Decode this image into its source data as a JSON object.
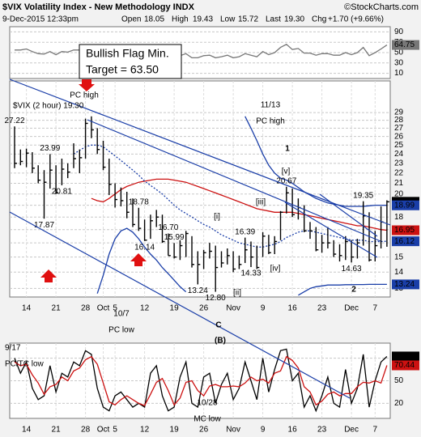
{
  "header": {
    "title": "$VIX Volatility Index - New Methodology INDX",
    "credit": "©StockCharts.com",
    "date": "9-Dec-2015 12:33pm",
    "quote": [
      [
        "Open",
        "18.05"
      ],
      [
        "High",
        "19.43"
      ],
      [
        "Low",
        "15.72"
      ],
      [
        "Last",
        "19.30"
      ],
      [
        "Chg",
        "+1.70 (+9.66%)"
      ]
    ]
  },
  "chart_data": [
    {
      "type": "line",
      "ylim": [
        0,
        100
      ],
      "yticks": [
        10,
        30,
        50,
        70,
        90
      ],
      "grid": true,
      "note": [
        "Bullish Flag Min.",
        "Target = 63.50"
      ],
      "series": [
        {
          "color": "#777777",
          "values": [
            55,
            55,
            57,
            52,
            48,
            47,
            52,
            46,
            52,
            51,
            55,
            55,
            62,
            58,
            52,
            47,
            43,
            45,
            45,
            43,
            41,
            40,
            39,
            45,
            47,
            42,
            40,
            39,
            44,
            48,
            40,
            40,
            44,
            45,
            40,
            42,
            45,
            40,
            42,
            48,
            45,
            42,
            52,
            46,
            50,
            60,
            66,
            56,
            58,
            49,
            49,
            45,
            48,
            48,
            45,
            45,
            50,
            46,
            50,
            60,
            44,
            50,
            57,
            64.75
          ]
        }
      ],
      "right_labels": [
        64.75
      ],
      "right_label_colors": [
        "#777777"
      ]
    },
    {
      "type": "ohlc",
      "log_scale": true,
      "ylim": [
        12.5,
        33.5
      ],
      "yticks": [
        13,
        14,
        15,
        16,
        17,
        18,
        19,
        20,
        21,
        22,
        23,
        24,
        25,
        26,
        27,
        28,
        29
      ],
      "grid": true,
      "legend": "$VIX (2 hour) 19.30",
      "color": "#000000",
      "categories": [
        null,
        null,
        "14",
        null,
        null,
        null,
        null,
        "21",
        null,
        null,
        null,
        null,
        "28",
        null,
        null,
        "Oct",
        null,
        "5",
        null,
        null,
        null,
        null,
        "12",
        null,
        null,
        null,
        null,
        "19",
        null,
        null,
        null,
        null,
        "26",
        null,
        null,
        null,
        null,
        "Nov",
        null,
        null,
        null,
        null,
        "9",
        null,
        null,
        null,
        null,
        "16",
        null,
        null,
        null,
        null,
        "23",
        null,
        null,
        null,
        null,
        "Dec",
        null,
        null,
        null,
        "7",
        null,
        null
      ],
      "high": [
        27.22,
        24.5,
        24.6,
        24.2,
        22.8,
        22.3,
        23.99,
        22.8,
        23.5,
        23.0,
        25.2,
        24.5,
        28.2,
        28.5,
        27.0,
        25.5,
        23.5,
        21.0,
        20.6,
        20.2,
        19.6,
        18.78,
        17.8,
        18.2,
        18.6,
        18.2,
        16.7,
        15.99,
        16.2,
        16.9,
        16.5,
        15.4,
        15.5,
        16.0,
        15.8,
        15.4,
        15.6,
        15.4,
        15.1,
        16.39,
        16.1,
        15.8,
        16.8,
        16.6,
        16.5,
        18.5,
        20.67,
        20.5,
        19.6,
        19.0,
        17.6,
        17.2,
        16.6,
        17.2,
        16.2,
        15.9,
        16.5,
        16.2,
        16.3,
        19.35,
        18.4,
        16.9,
        18.9,
        19.43
      ],
      "low": [
        22.5,
        22.8,
        22.6,
        22.0,
        21.0,
        17.87,
        20.5,
        20.0,
        20.81,
        21.5,
        22.5,
        22.0,
        23.5,
        25.8,
        24.0,
        22.3,
        19.9,
        18.8,
        18.9,
        17.9,
        17.2,
        16.9,
        16.14,
        16.3,
        17.2,
        16.0,
        15.1,
        14.9,
        14.8,
        15.0,
        14.3,
        13.24,
        14.2,
        14.9,
        12.8,
        14.3,
        14.5,
        14.0,
        14.2,
        14.6,
        14.33,
        14.2,
        15.0,
        15.2,
        15.2,
        16.2,
        18.3,
        18.0,
        17.8,
        16.8,
        16.3,
        15.4,
        15.3,
        15.6,
        15.0,
        14.7,
        14.8,
        14.63,
        14.9,
        15.8,
        14.7,
        14.7,
        15.6,
        15.72
      ],
      "close": [
        23.0,
        23.2,
        24.1,
        22.5,
        21.3,
        21.1,
        22.3,
        20.1,
        22.4,
        22.1,
        23.5,
        23.6,
        27.6,
        26.8,
        24.5,
        22.6,
        20.9,
        19.5,
        19.4,
        18.4,
        17.4,
        17.1,
        16.2,
        17.7,
        18.0,
        16.1,
        15.1,
        15.0,
        15.8,
        16.7,
        14.5,
        14.5,
        15.3,
        15.4,
        14.3,
        14.6,
        15.1,
        14.2,
        14.5,
        15.5,
        15.0,
        14.3,
        16.5,
        15.3,
        16.1,
        18.4,
        20.1,
        18.2,
        18.8,
        16.9,
        16.9,
        15.5,
        16.0,
        16.0,
        15.2,
        15.1,
        16.1,
        15.0,
        16.0,
        18.1,
        14.8,
        15.8,
        17.6,
        19.3
      ],
      "overlays": [
        {
          "color": "#cc1111",
          "values": [
            null,
            null,
            null,
            null,
            null,
            null,
            null,
            null,
            null,
            null,
            null,
            null,
            null,
            19.6,
            19.4,
            19.3,
            19.6,
            20.0,
            20.4,
            20.7,
            20.9,
            21.1,
            21.2,
            21.3,
            21.4,
            21.4,
            21.4,
            21.3,
            21.2,
            21.1,
            20.9,
            20.7,
            20.5,
            20.3,
            20.1,
            19.9,
            19.7,
            19.5,
            19.3,
            19.1,
            18.9,
            18.7,
            18.6,
            18.5,
            18.4,
            18.4,
            18.4,
            18.4,
            18.3,
            18.2,
            18.1,
            18.0,
            17.9,
            17.8,
            17.7,
            17.6,
            17.5,
            17.4,
            17.3,
            17.3,
            17.2,
            17.1,
            17.0,
            16.95
          ]
        },
        {
          "color": "#1a3ea8",
          "dashed": true,
          "values": [
            null,
            null,
            null,
            null,
            null,
            null,
            null,
            null,
            null,
            null,
            24.0,
            24.4,
            24.8,
            25.0,
            25.0,
            24.8,
            24.3,
            23.8,
            23.3,
            22.8,
            22.3,
            21.8,
            21.2,
            20.8,
            20.4,
            20.0,
            19.5,
            19.0,
            18.6,
            18.3,
            18.0,
            17.7,
            17.4,
            17.2,
            16.9,
            16.6,
            16.4,
            16.2,
            16.0,
            15.9,
            15.8,
            15.7,
            15.7,
            15.8,
            15.9,
            16.1,
            16.4,
            16.6,
            16.8,
            16.9,
            16.9,
            16.8,
            16.7,
            16.6,
            16.5,
            16.4,
            16.3,
            16.2,
            16.2,
            16.2,
            16.1,
            16.1,
            16.1,
            16.12
          ]
        },
        {
          "color": "#1a3ea8",
          "values": [
            null,
            null,
            null,
            null,
            null,
            null,
            null,
            null,
            null,
            null,
            null,
            null,
            null,
            null,
            null,
            null,
            null,
            null,
            null,
            null,
            null,
            null,
            null,
            null,
            null,
            null,
            null,
            null,
            null,
            null,
            null,
            null,
            null,
            null,
            null,
            null,
            null,
            null,
            null,
            28.5,
            27.0,
            25.5,
            24.0,
            22.8,
            22.0,
            21.5,
            21.3,
            21.0,
            20.6,
            20.2,
            19.9,
            19.6,
            19.4,
            19.2,
            19.1,
            19.0,
            18.9,
            18.9,
            18.9,
            18.9,
            18.95,
            19.0,
            19.0,
            18.99
          ]
        },
        {
          "color": "#1a3ea8",
          "values": [
            null,
            null,
            null,
            null,
            null,
            null,
            null,
            null,
            null,
            null,
            null,
            null,
            null,
            null,
            12.7,
            13.8,
            15.2,
            16.3,
            16.9,
            17.1,
            16.8,
            16.3,
            15.7,
            15.2,
            14.8,
            14.3,
            13.9,
            13.5,
            13.1,
            12.8,
            null,
            null,
            null,
            null,
            null,
            null,
            null,
            null,
            null,
            null,
            null,
            null,
            null,
            null,
            null,
            null,
            null,
            null,
            12.6,
            12.8,
            13.0,
            13.1,
            13.15,
            13.2,
            13.2,
            13.2,
            13.22,
            13.22,
            13.23,
            13.23,
            13.24,
            13.24,
            13.24,
            13.24
          ]
        }
      ],
      "price_labels": [
        27.22,
        23.99,
        20.81,
        17.87,
        18.78,
        {
          "value": 16.7,
          "label": "16.70"
        },
        15.99,
        16.14,
        13.24,
        {
          "value": 12.8,
          "label": "12.80"
        },
        16.39,
        14.33,
        20.67,
        19.35,
        14.63
      ],
      "annotations": [
        {
          "text": [
            "PC high"
          ],
          "color": "#000000"
        },
        {
          "text": [
            "11/13",
            "PC high"
          ],
          "color": "#000000"
        },
        {
          "text": [
            "1"
          ],
          "color": "#7a1fa8"
        },
        {
          "text": [
            "[v]"
          ],
          "color": "#cc1111"
        },
        {
          "text": [
            "[iii]"
          ],
          "color": "#cc1111"
        },
        {
          "text": [
            "[iv]"
          ],
          "color": "#cc1111"
        },
        {
          "text": [
            "[i]"
          ],
          "color": "#cc1111"
        },
        {
          "text": [
            "[ii]"
          ],
          "color": "#cc1111"
        },
        {
          "text": [
            "10/7",
            "PC low"
          ],
          "color": "#000000"
        },
        {
          "text": [
            "C"
          ],
          "color": "#7a1fa8"
        },
        {
          "text": [
            "(B)"
          ],
          "color": "#000000"
        },
        {
          "text": [
            "9/17",
            "PC/TC low"
          ],
          "color": "#000000"
        },
        {
          "text": [
            "10/28",
            "MC low"
          ],
          "color": "#000000"
        },
        {
          "text": [
            "2"
          ],
          "color": "#7a1fa8"
        }
      ],
      "right_labels": [
        {
          "value": 19.3,
          "label": "19.30"
        },
        18.99,
        16.95,
        16.12,
        13.24
      ],
      "right_label_colors": [
        "#000000",
        "#1a3ea8",
        "#cc1111",
        "#1a3ea8",
        "#1a3ea8"
      ]
    },
    {
      "type": "line",
      "ylim": [
        0,
        100
      ],
      "yticks": [
        20,
        50,
        80
      ],
      "grid": true,
      "categories": [
        null,
        null,
        "14",
        null,
        null,
        null,
        null,
        "21",
        null,
        null,
        null,
        null,
        "28",
        null,
        null,
        "Oct",
        null,
        "5",
        null,
        null,
        null,
        null,
        "12",
        null,
        null,
        null,
        null,
        "19",
        null,
        null,
        null,
        null,
        "26",
        null,
        null,
        null,
        null,
        "Nov",
        null,
        null,
        null,
        null,
        "9",
        null,
        null,
        null,
        null,
        "16",
        null,
        null,
        null,
        null,
        "23",
        null,
        null,
        null,
        null,
        "Dec",
        null,
        null,
        null,
        "7",
        null,
        null
      ],
      "series": [
        {
          "color": "#000000",
          "values": [
            80,
            60,
            75,
            40,
            25,
            30,
            70,
            35,
            60,
            55,
            75,
            70,
            90,
            85,
            40,
            15,
            10,
            30,
            35,
            25,
            15,
            20,
            15,
            60,
            70,
            30,
            10,
            15,
            55,
            75,
            20,
            15,
            55,
            60,
            20,
            45,
            60,
            25,
            40,
            75,
            50,
            25,
            80,
            35,
            65,
            90,
            92,
            50,
            60,
            15,
            30,
            10,
            30,
            55,
            20,
            15,
            65,
            20,
            40,
            85,
            15,
            50,
            75,
            82.28
          ]
        },
        {
          "color": "#cc1111",
          "values": [
            75,
            70,
            72,
            58,
            47,
            32,
            42,
            45,
            55,
            50,
            63,
            67,
            78,
            82,
            72,
            47,
            22,
            18,
            25,
            30,
            25,
            20,
            17,
            32,
            48,
            53,
            37,
            18,
            27,
            48,
            50,
            37,
            30,
            43,
            45,
            42,
            42,
            43,
            42,
            47,
            55,
            50,
            52,
            47,
            60,
            63,
            82,
            77,
            67,
            42,
            35,
            18,
            23,
            32,
            35,
            30,
            33,
            33,
            42,
            48,
            47,
            50,
            47,
            70.44
          ]
        }
      ],
      "right_labels": [
        82.28,
        70.44
      ],
      "right_label_colors": [
        "#000000",
        "#cc1111"
      ]
    }
  ]
}
